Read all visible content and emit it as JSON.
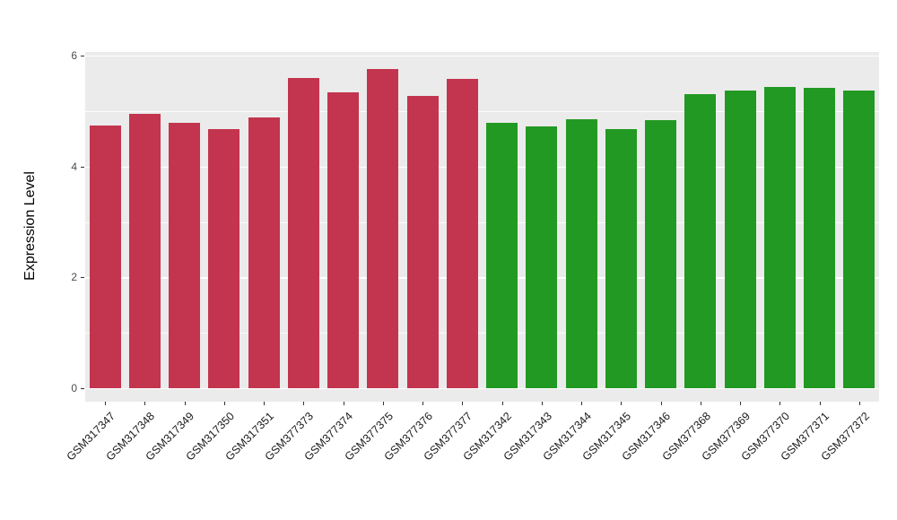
{
  "chart_data": {
    "type": "bar",
    "title": "",
    "xlabel": "",
    "ylabel": "Expression Level",
    "ylim": [
      0,
      6
    ],
    "yticks": [
      0,
      2,
      4,
      6
    ],
    "yticks_minor": [
      1,
      3,
      5
    ],
    "grid": "on",
    "legend_position": "none",
    "panel_background": "#EBEBEB",
    "grid_color": "#FFFFFF",
    "categories": [
      "GSM317347",
      "GSM317348",
      "GSM317349",
      "GSM317350",
      "GSM317351",
      "GSM377373",
      "GSM377374",
      "GSM377375",
      "GSM377376",
      "GSM377377",
      "GSM317342",
      "GSM317343",
      "GSM317344",
      "GSM317345",
      "GSM317346",
      "GSM377368",
      "GSM377369",
      "GSM377370",
      "GSM377371",
      "GSM377372"
    ],
    "values": [
      4.74,
      4.95,
      4.78,
      4.67,
      4.88,
      5.6,
      5.33,
      5.76,
      5.27,
      5.58,
      4.78,
      4.72,
      4.85,
      4.68,
      4.83,
      5.31,
      5.37,
      5.43,
      5.41,
      5.37
    ],
    "colors": [
      "#C3344E",
      "#C3344E",
      "#C3344E",
      "#C3344E",
      "#C3344E",
      "#C3344E",
      "#C3344E",
      "#C3344E",
      "#C3344E",
      "#C3344E",
      "#229922",
      "#229922",
      "#229922",
      "#229922",
      "#229922",
      "#229922",
      "#229922",
      "#229922",
      "#229922",
      "#229922"
    ],
    "groups": [
      {
        "name": "group-red",
        "color": "#C3344E",
        "count": 10
      },
      {
        "name": "group-green",
        "color": "#229922",
        "count": 10
      }
    ]
  }
}
